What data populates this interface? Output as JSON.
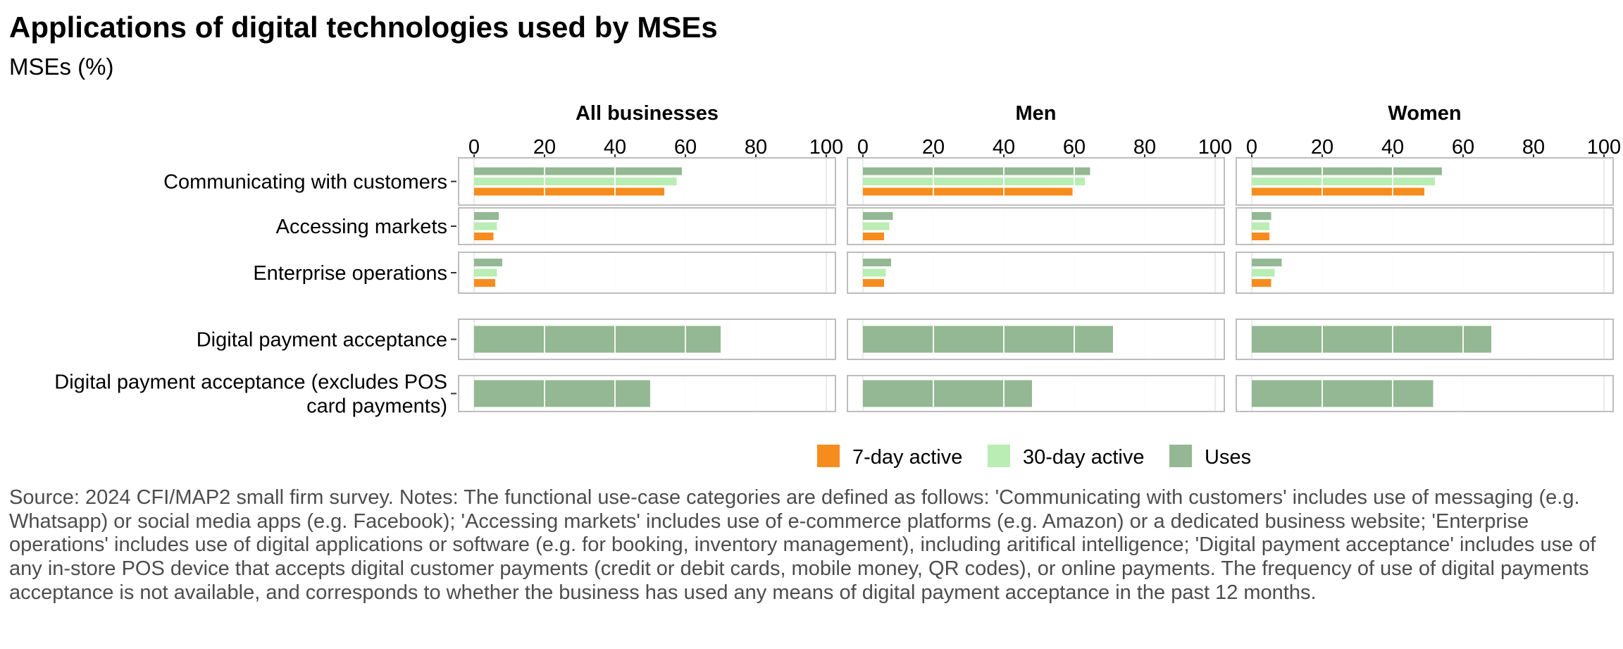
{
  "header": {
    "title": "Applications of digital technologies used by MSEs",
    "subtitle": "MSEs (%)"
  },
  "footer": {
    "note": "Source: 2024 CFI/MAP2 small firm survey. Notes: The functional use-case categories are defined as follows: 'Communicating with customers' includes use of messaging (e.g. Whatsapp) or social media apps (e.g. Facebook); 'Accessing markets' includes use of e-commerce platforms (e.g. Amazon) or a dedicated business website; 'Enterprise operations' includes use of digital applications or software (e.g. for booking, inventory management), including aritifical intelligence; 'Digital payment acceptance' includes use of any in-store POS device that accepts digital customer payments (credit or debit cards, mobile money, QR codes), or online payments. The frequency of use of digital payments acceptance is not available, and corresponds to whether the business has used any means of digital payment acceptance in the past 12 months."
  },
  "chart_data": {
    "type": "bar",
    "orientation": "horizontal",
    "facets": [
      "All businesses",
      "Men",
      "Women"
    ],
    "categories": [
      "Communicating with customers",
      "Accessing markets",
      "Enterprise operations",
      "Digital payment acceptance",
      "Digital payment acceptance (excludes POS card payments)"
    ],
    "category_label_lines": [
      [
        "Communicating with customers"
      ],
      [
        "Accessing markets"
      ],
      [
        "Enterprise operations"
      ],
      [
        "Digital payment acceptance"
      ],
      [
        "Digital payment acceptance (excludes POS",
        "card payments)"
      ]
    ],
    "xlim": [
      0,
      100
    ],
    "xticks": [
      0,
      20,
      40,
      60,
      80,
      100
    ],
    "grid": true,
    "legend_position": "bottom",
    "series": [
      {
        "name": "Uses",
        "color": "#93b893",
        "values": {
          "All businesses": [
            59,
            7,
            8,
            70,
            50
          ],
          "Men": [
            64.5,
            8.5,
            8,
            71,
            48
          ],
          "Women": [
            54,
            5.5,
            8.5,
            68,
            51.5
          ]
        }
      },
      {
        "name": "30-day active",
        "color": "#b9edb3",
        "values": {
          "All businesses": [
            57.5,
            6.5,
            6.5,
            null,
            null
          ],
          "Men": [
            63,
            7.5,
            6.5,
            null,
            null
          ],
          "Women": [
            52,
            5,
            6.5,
            null,
            null
          ]
        }
      },
      {
        "name": "7-day active",
        "color": "#f78c1e",
        "values": {
          "All businesses": [
            54,
            5.5,
            6,
            null,
            null
          ],
          "Men": [
            59.5,
            6,
            6,
            null,
            null
          ],
          "Women": [
            49,
            5,
            5.5,
            null,
            null
          ]
        }
      }
    ],
    "legend_order": [
      "7-day active",
      "30-day active",
      "Uses"
    ]
  }
}
